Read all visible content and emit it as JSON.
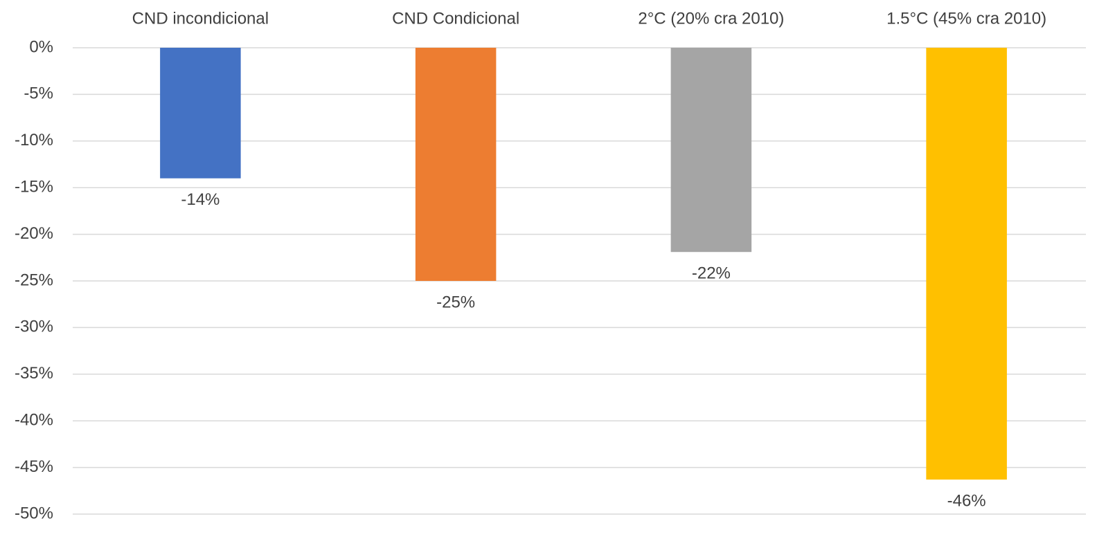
{
  "chart_data": {
    "type": "bar",
    "categories": [
      "CND incondicional",
      "CND Condicional",
      "2°C (20% cra 2010)",
      "1.5°C (45% cra 2010)"
    ],
    "values": [
      -14.0,
      -25.0,
      -21.9,
      -46.3
    ],
    "value_labels": [
      "-14%",
      "-25%",
      "-22%",
      "-46%"
    ],
    "colors": [
      "#4472c4",
      "#ed7d31",
      "#a5a5a5",
      "#ffc000"
    ],
    "ylim": [
      -50,
      0
    ],
    "yticks": [
      {
        "value": 0,
        "label": "0%"
      },
      {
        "value": -5,
        "label": "-5%"
      },
      {
        "value": -10,
        "label": "-10%"
      },
      {
        "value": -15,
        "label": "-15%"
      },
      {
        "value": -20,
        "label": "-20%"
      },
      {
        "value": -25,
        "label": "-25%"
      },
      {
        "value": -30,
        "label": "-30%"
      },
      {
        "value": -35,
        "label": "-35%"
      },
      {
        "value": -40,
        "label": "-40%"
      },
      {
        "value": -45,
        "label": "-45%"
      },
      {
        "value": -50,
        "label": "-50%"
      }
    ],
    "grid": true
  }
}
